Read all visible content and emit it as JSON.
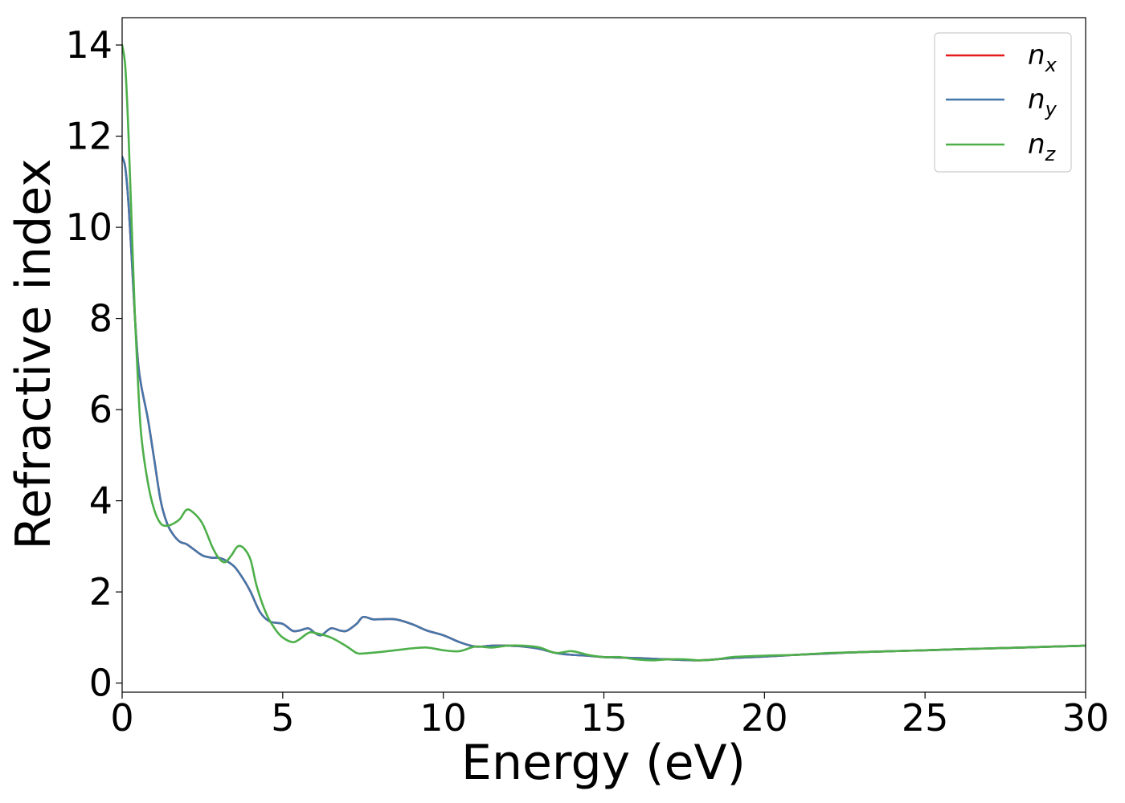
{
  "chart_data": {
    "type": "line",
    "title": "",
    "xlabel": "Energy (eV)",
    "ylabel": "Refractive index",
    "xlim": [
      0,
      30
    ],
    "ylim": [
      -0.2,
      14.6
    ],
    "xticks": [
      0,
      5,
      10,
      15,
      20,
      25,
      30
    ],
    "yticks": [
      0,
      2,
      4,
      6,
      8,
      10,
      12,
      14
    ],
    "grid": false,
    "legend_position": "top-right",
    "series": [
      {
        "name": "n",
        "subscript": "x",
        "color": "#e41a1c",
        "x": [
          0,
          0.1,
          0.2,
          0.3,
          0.4,
          0.5,
          0.6,
          0.8,
          1.0,
          1.2,
          1.4,
          1.6,
          1.8,
          2.0,
          2.2,
          2.5,
          2.8,
          3.0,
          3.2,
          3.5,
          3.8,
          4.0,
          4.3,
          4.6,
          5.0,
          5.3,
          5.5,
          5.8,
          6.0,
          6.2,
          6.5,
          6.8,
          7.0,
          7.3,
          7.5,
          7.8,
          8.0,
          8.5,
          9.0,
          9.5,
          10.0,
          10.5,
          11.0,
          11.5,
          12.0,
          12.5,
          13.0,
          13.5,
          14.0,
          14.5,
          15.0,
          16.0,
          17.0,
          18.0,
          19.0,
          20.0,
          21.0,
          22.0,
          23.0,
          24.0,
          25.0,
          26.0,
          27.0,
          28.0,
          29.0,
          30.0
        ],
        "y": [
          11.55,
          11.3,
          10.5,
          9.3,
          8.0,
          7.0,
          6.5,
          5.8,
          4.9,
          4.0,
          3.5,
          3.25,
          3.1,
          3.05,
          2.95,
          2.8,
          2.75,
          2.75,
          2.7,
          2.55,
          2.25,
          2.0,
          1.55,
          1.35,
          1.3,
          1.15,
          1.15,
          1.2,
          1.1,
          1.05,
          1.2,
          1.15,
          1.15,
          1.3,
          1.45,
          1.4,
          1.4,
          1.4,
          1.3,
          1.15,
          1.05,
          0.9,
          0.8,
          0.82,
          0.82,
          0.8,
          0.75,
          0.66,
          0.62,
          0.6,
          0.57,
          0.55,
          0.52,
          0.5,
          0.55,
          0.58,
          0.62,
          0.65,
          0.68,
          0.7,
          0.72,
          0.74,
          0.76,
          0.78,
          0.8,
          0.82
        ]
      },
      {
        "name": "n",
        "subscript": "y",
        "color": "#4477aa",
        "x": [
          0,
          0.1,
          0.2,
          0.3,
          0.4,
          0.5,
          0.6,
          0.8,
          1.0,
          1.2,
          1.4,
          1.6,
          1.8,
          2.0,
          2.2,
          2.5,
          2.8,
          3.0,
          3.2,
          3.5,
          3.8,
          4.0,
          4.3,
          4.6,
          5.0,
          5.3,
          5.5,
          5.8,
          6.0,
          6.2,
          6.5,
          6.8,
          7.0,
          7.3,
          7.5,
          7.8,
          8.0,
          8.5,
          9.0,
          9.5,
          10.0,
          10.5,
          11.0,
          11.5,
          12.0,
          12.5,
          13.0,
          13.5,
          14.0,
          14.5,
          15.0,
          16.0,
          17.0,
          18.0,
          19.0,
          20.0,
          21.0,
          22.0,
          23.0,
          24.0,
          25.0,
          26.0,
          27.0,
          28.0,
          29.0,
          30.0
        ],
        "y": [
          11.55,
          11.3,
          10.5,
          9.3,
          8.0,
          7.0,
          6.5,
          5.8,
          4.9,
          4.0,
          3.5,
          3.25,
          3.1,
          3.05,
          2.95,
          2.8,
          2.75,
          2.75,
          2.7,
          2.55,
          2.25,
          2.0,
          1.55,
          1.35,
          1.3,
          1.15,
          1.15,
          1.2,
          1.1,
          1.05,
          1.2,
          1.15,
          1.15,
          1.3,
          1.45,
          1.4,
          1.4,
          1.4,
          1.3,
          1.15,
          1.05,
          0.9,
          0.8,
          0.82,
          0.82,
          0.8,
          0.75,
          0.66,
          0.62,
          0.6,
          0.57,
          0.55,
          0.52,
          0.5,
          0.55,
          0.58,
          0.62,
          0.65,
          0.68,
          0.7,
          0.72,
          0.74,
          0.76,
          0.78,
          0.8,
          0.82
        ]
      },
      {
        "name": "n",
        "subscript": "z",
        "color": "#4daf4a",
        "x": [
          0,
          0.1,
          0.2,
          0.3,
          0.4,
          0.5,
          0.6,
          0.8,
          1.0,
          1.2,
          1.4,
          1.6,
          1.8,
          2.0,
          2.2,
          2.5,
          2.8,
          3.0,
          3.2,
          3.4,
          3.6,
          3.8,
          4.0,
          4.2,
          4.5,
          4.8,
          5.0,
          5.3,
          5.5,
          5.8,
          6.0,
          6.5,
          7.0,
          7.3,
          7.5,
          8.0,
          8.5,
          9.0,
          9.5,
          10.0,
          10.5,
          11.0,
          11.5,
          12.0,
          12.5,
          13.0,
          13.5,
          14.0,
          14.5,
          15.0,
          15.5,
          16.0,
          16.5,
          17.0,
          17.5,
          18.0,
          18.5,
          19.0,
          20.0,
          21.0,
          22.0,
          23.0,
          24.0,
          25.0,
          26.0,
          27.0,
          28.0,
          29.0,
          30.0
        ],
        "y": [
          14.0,
          13.5,
          12.0,
          10.0,
          8.0,
          6.5,
          5.4,
          4.4,
          3.8,
          3.5,
          3.45,
          3.5,
          3.6,
          3.8,
          3.75,
          3.5,
          3.0,
          2.75,
          2.65,
          2.8,
          3.0,
          2.95,
          2.7,
          2.1,
          1.5,
          1.15,
          1.0,
          0.9,
          0.95,
          1.1,
          1.1,
          1.0,
          0.8,
          0.66,
          0.65,
          0.68,
          0.72,
          0.76,
          0.78,
          0.72,
          0.7,
          0.8,
          0.78,
          0.82,
          0.82,
          0.78,
          0.66,
          0.7,
          0.62,
          0.57,
          0.57,
          0.52,
          0.5,
          0.52,
          0.52,
          0.5,
          0.52,
          0.57,
          0.6,
          0.62,
          0.66,
          0.68,
          0.7,
          0.72,
          0.74,
          0.76,
          0.78,
          0.8,
          0.82
        ]
      }
    ]
  }
}
